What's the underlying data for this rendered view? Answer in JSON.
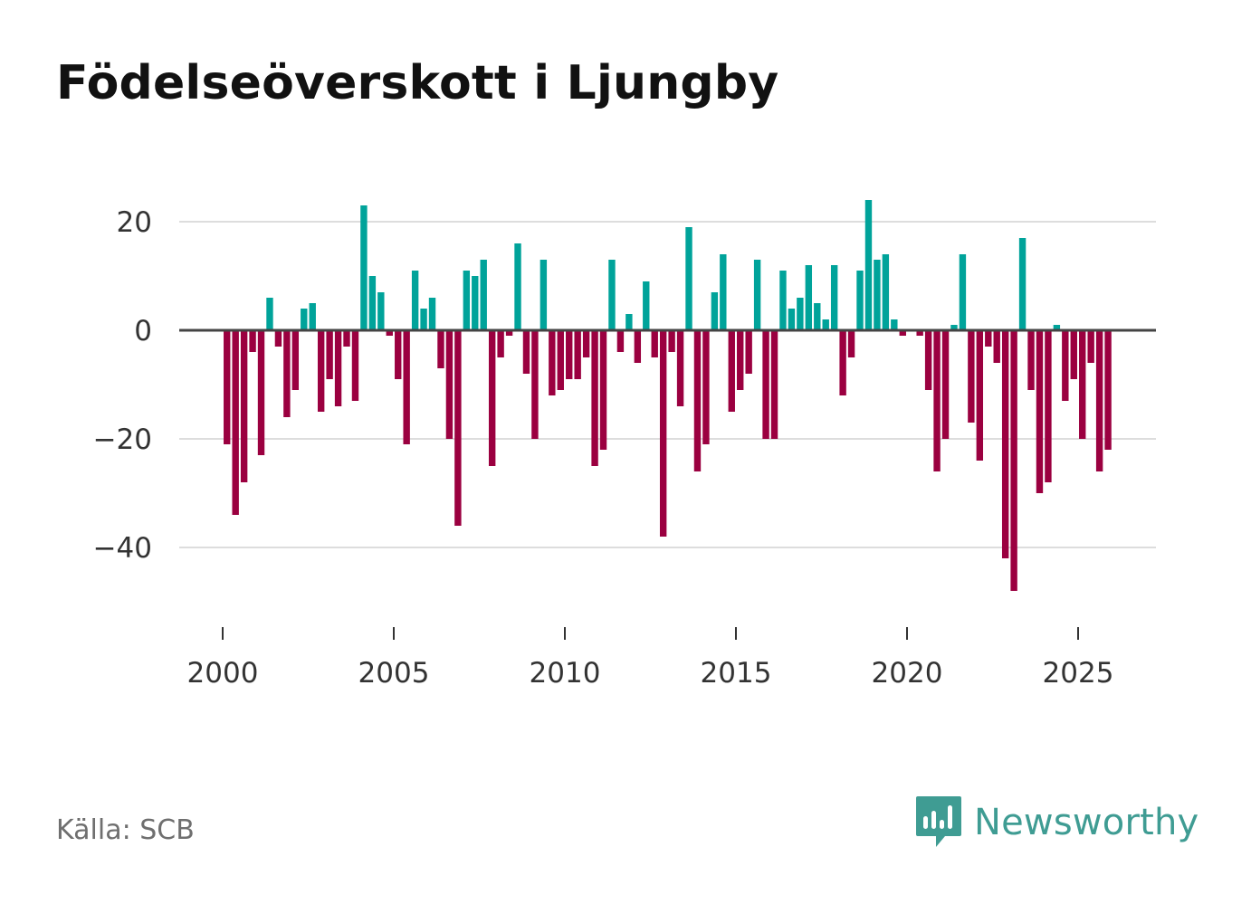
{
  "title": "Födelseöverskott i Ljungby",
  "source": "Källa: SCB",
  "brand": {
    "name": "Newsworthy",
    "icon": "newsworthy-logo-icon",
    "color": "#3f9c93"
  },
  "colors": {
    "positive": "#00a39a",
    "negative": "#9b0040",
    "zero_line": "#444444",
    "grid": "#dddddd"
  },
  "chart_data": {
    "type": "bar",
    "title": "Födelseöverskott i Ljungby",
    "xlabel": "",
    "ylabel": "",
    "ylim": [
      -52,
      29
    ],
    "xlim": [
      1999.25,
      2027.25
    ],
    "yticks": [
      20,
      0,
      -20,
      -40
    ],
    "ytick_labels": [
      "20",
      "0",
      "−20",
      "−40"
    ],
    "xticks": [
      2000,
      2005,
      2010,
      2015,
      2020,
      2025
    ],
    "xtick_labels": [
      "2000",
      "2005",
      "2010",
      "2015",
      "2020",
      "2025"
    ],
    "grid": true,
    "frequency": "quarterly",
    "start": "2000Q1",
    "categories": [
      "2000Q1",
      "2000Q2",
      "2000Q3",
      "2000Q4",
      "2001Q1",
      "2001Q2",
      "2001Q3",
      "2001Q4",
      "2002Q1",
      "2002Q2",
      "2002Q3",
      "2002Q4",
      "2003Q1",
      "2003Q2",
      "2003Q3",
      "2003Q4",
      "2004Q1",
      "2004Q2",
      "2004Q3",
      "2004Q4",
      "2005Q1",
      "2005Q2",
      "2005Q3",
      "2005Q4",
      "2006Q1",
      "2006Q2",
      "2006Q3",
      "2006Q4",
      "2007Q1",
      "2007Q2",
      "2007Q3",
      "2007Q4",
      "2008Q1",
      "2008Q2",
      "2008Q3",
      "2008Q4",
      "2009Q1",
      "2009Q2",
      "2009Q3",
      "2009Q4",
      "2010Q1",
      "2010Q2",
      "2010Q3",
      "2010Q4",
      "2011Q1",
      "2011Q2",
      "2011Q3",
      "2011Q4",
      "2012Q1",
      "2012Q2",
      "2012Q3",
      "2012Q4",
      "2013Q1",
      "2013Q2",
      "2013Q3",
      "2013Q4",
      "2014Q1",
      "2014Q2",
      "2014Q3",
      "2014Q4",
      "2015Q1",
      "2015Q2",
      "2015Q3",
      "2015Q4",
      "2016Q1",
      "2016Q2",
      "2016Q3",
      "2016Q4",
      "2017Q1",
      "2017Q2",
      "2017Q3",
      "2017Q4",
      "2018Q1",
      "2018Q2",
      "2018Q3",
      "2018Q4",
      "2019Q1",
      "2019Q2",
      "2019Q3",
      "2019Q4",
      "2020Q1",
      "2020Q2",
      "2020Q3",
      "2020Q4",
      "2021Q1",
      "2021Q2",
      "2021Q3",
      "2021Q4",
      "2022Q1",
      "2022Q2",
      "2022Q3",
      "2022Q4",
      "2023Q1",
      "2023Q2",
      "2023Q3",
      "2023Q4",
      "2024Q1",
      "2024Q2",
      "2024Q3",
      "2024Q4",
      "2025Q1",
      "2025Q2",
      "2025Q3",
      "2025Q4"
    ],
    "values": [
      -21,
      -34,
      -28,
      -4,
      -23,
      6,
      -3,
      -16,
      -11,
      4,
      5,
      -15,
      -9,
      -14,
      -3,
      -13,
      23,
      10,
      7,
      -1,
      -9,
      -21,
      11,
      4,
      6,
      -7,
      -20,
      -36,
      11,
      10,
      13,
      -25,
      -5,
      -1,
      16,
      -8,
      -20,
      13,
      -12,
      -11,
      -9,
      -9,
      -5,
      -25,
      -22,
      13,
      -4,
      3,
      -6,
      9,
      -5,
      -38,
      -4,
      -14,
      19,
      -26,
      -21,
      7,
      14,
      -15,
      -11,
      -8,
      13,
      -20,
      -20,
      11,
      4,
      6,
      12,
      5,
      2,
      12,
      -12,
      -5,
      11,
      24,
      13,
      14,
      2,
      -1,
      0,
      -1,
      -11,
      -26,
      -20,
      1,
      14,
      -17,
      -24,
      -3,
      -6,
      -42,
      -48,
      17,
      -11,
      -30,
      -28,
      1,
      -13,
      -9,
      -20,
      -6,
      -26,
      -22
    ]
  }
}
